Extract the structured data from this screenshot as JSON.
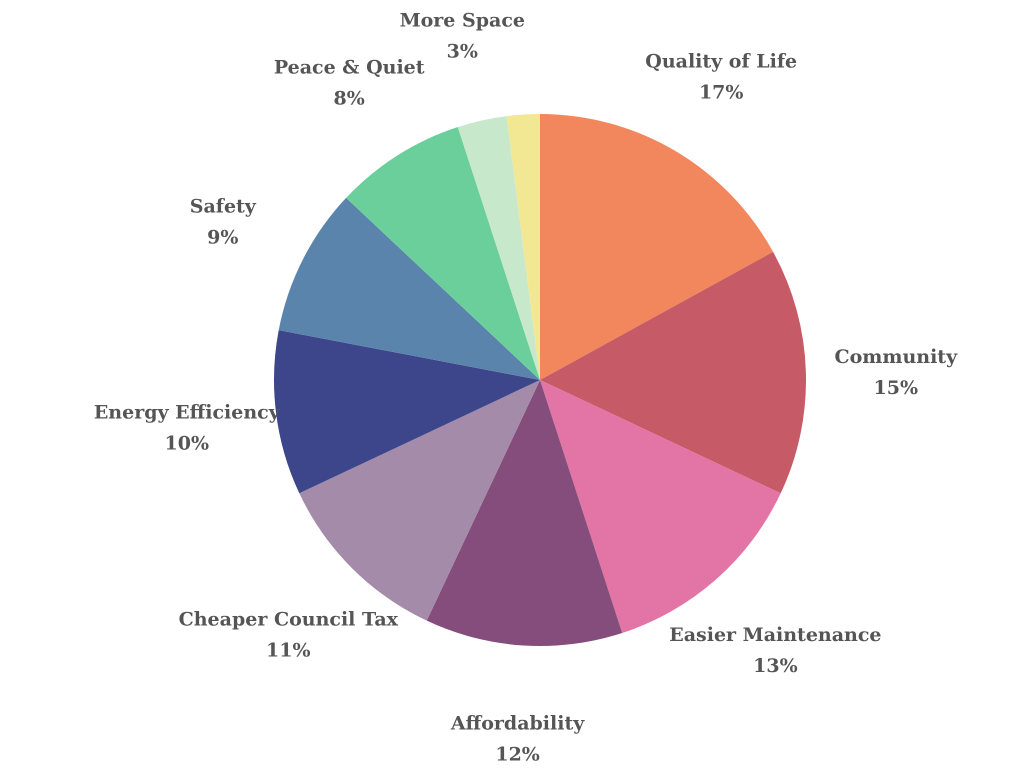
{
  "chart_data": {
    "type": "pie",
    "title": "",
    "start": "top",
    "direction": "clockwise",
    "slices": [
      {
        "label": "Quality of Life",
        "value": 17,
        "display": "17%",
        "color": "#F2865C"
      },
      {
        "label": "Community",
        "value": 15,
        "display": "15%",
        "color": "#C65A66"
      },
      {
        "label": "Easier Maintenance",
        "value": 13,
        "display": "13%",
        "color": "#E274A6"
      },
      {
        "label": "Affordability",
        "value": 12,
        "display": "12%",
        "color": "#854D7B"
      },
      {
        "label": "Cheaper Council Tax",
        "value": 11,
        "display": "11%",
        "color": "#A38BA9"
      },
      {
        "label": "Energy Efficiency",
        "value": 10,
        "display": "10%",
        "color": "#3D468A"
      },
      {
        "label": "Safety",
        "value": 9,
        "display": "9%",
        "color": "#5A84AB"
      },
      {
        "label": "Peace & Quiet",
        "value": 8,
        "display": "8%",
        "color": "#6BCF9C"
      },
      {
        "label": "More Space",
        "value": 3,
        "display": "3%",
        "color": "#C8E8CC"
      },
      {
        "label": "",
        "value": 2,
        "display": "",
        "color": "#F2E894"
      }
    ]
  }
}
